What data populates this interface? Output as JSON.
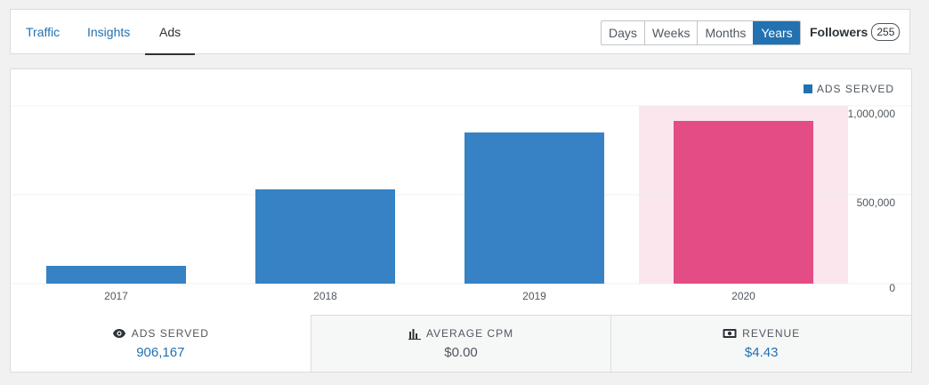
{
  "tabs": [
    {
      "label": "Traffic",
      "active": false
    },
    {
      "label": "Insights",
      "active": false
    },
    {
      "label": "Ads",
      "active": true
    }
  ],
  "periods": [
    {
      "label": "Days",
      "active": false
    },
    {
      "label": "Weeks",
      "active": false
    },
    {
      "label": "Months",
      "active": false
    },
    {
      "label": "Years",
      "active": true
    }
  ],
  "followers": {
    "label": "Followers",
    "count": "255"
  },
  "colors": {
    "accent": "#2271b1",
    "bar": "#3682c4",
    "highlight_bar": "#e34c84",
    "highlight_bg": "#fae6ec"
  },
  "chart_data": {
    "type": "bar",
    "categories": [
      "2017",
      "2018",
      "2019",
      "2020"
    ],
    "series": [
      {
        "name": "ADS SERVED",
        "values": [
          100000,
          530000,
          850000,
          915000
        ]
      }
    ],
    "highlighted_category": "2020",
    "ylim": [
      0,
      1000000
    ],
    "yticks": [
      0,
      500000,
      1000000
    ],
    "ytick_labels": [
      "0",
      "500,000",
      "1,000,000"
    ],
    "legend_position": "top-right",
    "y_axis_side": "right",
    "grid": true
  },
  "stats": [
    {
      "icon": "eye-icon",
      "label": "ADS SERVED",
      "value": "906,167"
    },
    {
      "icon": "bar-chart-icon",
      "label": "AVERAGE CPM",
      "value": "$0.00"
    },
    {
      "icon": "money-icon",
      "label": "REVENUE",
      "value": "$4.43"
    }
  ]
}
